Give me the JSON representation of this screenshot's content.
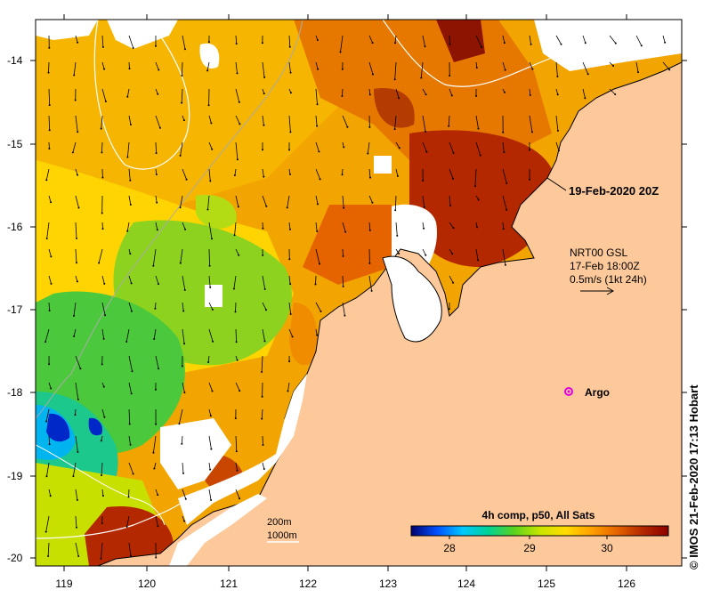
{
  "map": {
    "lat_ticks": [
      "-14",
      "-15",
      "-16",
      "-17",
      "-18",
      "-19",
      "-20"
    ],
    "lon_ticks": [
      "119",
      "120",
      "121",
      "122",
      "123",
      "124",
      "125",
      "126"
    ]
  },
  "annotations": {
    "timestamp": "19-Feb-2020 20Z",
    "current_source": "NRT00 GSL",
    "current_time": "17-Feb 18:00Z",
    "current_scale": "0.5m/s (1kt 24h)",
    "argo_label": "Argo",
    "contour_200": "200m",
    "contour_1000": "1000m"
  },
  "colorbar": {
    "title": "4h comp, p50, All Sats",
    "ticks": [
      "28",
      "29",
      "30"
    ],
    "colors": [
      "#00006e",
      "#0050ff",
      "#00c8ff",
      "#00d296",
      "#5ad21e",
      "#c8e600",
      "#ffdc00",
      "#ffa000",
      "#e66400",
      "#b42800",
      "#8c0000"
    ]
  },
  "credit": "© IMOS 21-Feb-2020 17:13 Hobart",
  "colors": {
    "land": "#fdc99a",
    "cloud": "#ffffff",
    "argo": "#e000e0"
  }
}
